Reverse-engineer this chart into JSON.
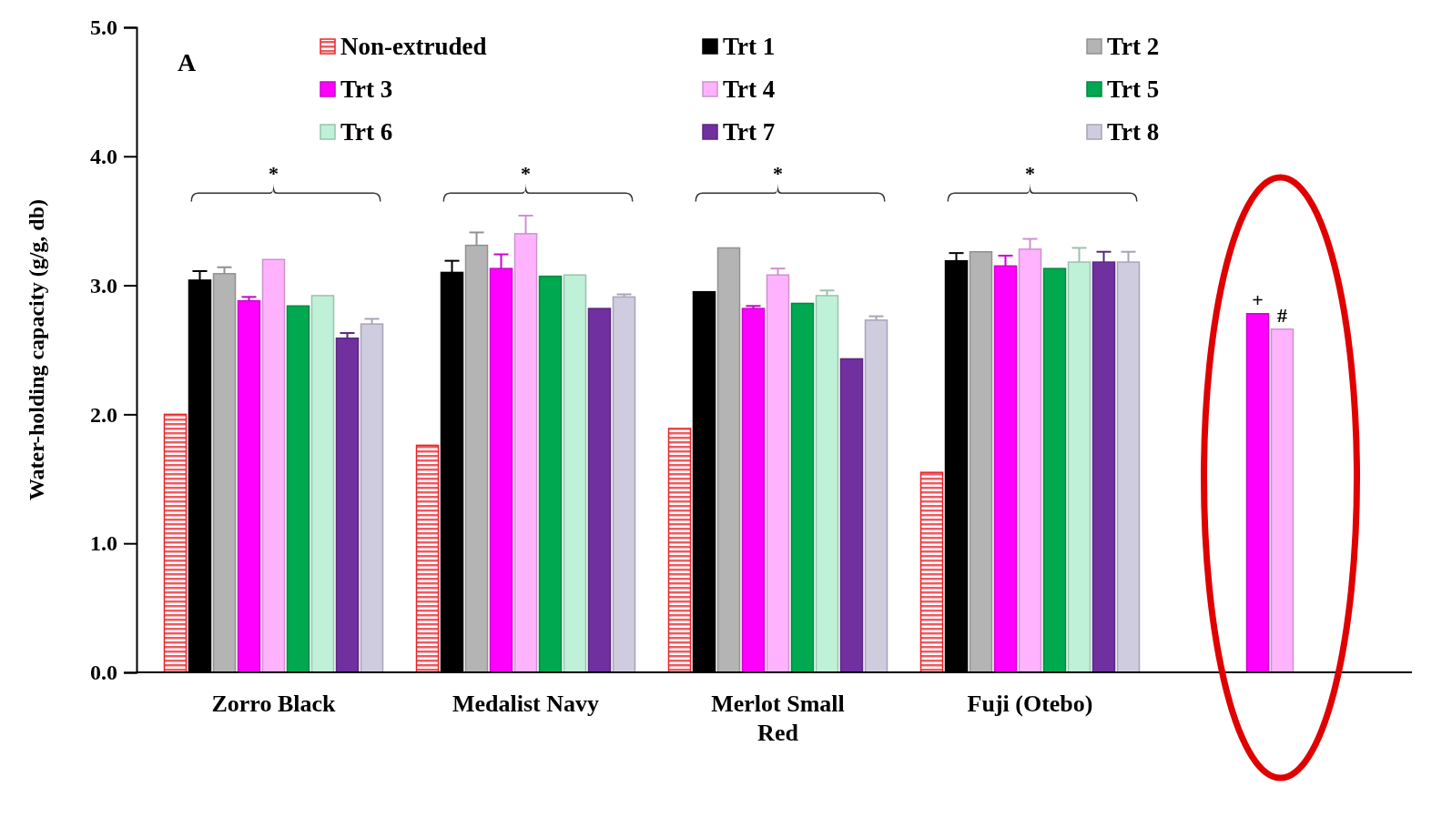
{
  "chart_data": {
    "type": "bar",
    "ylabel": "Water-holding capacity (g/g, db)",
    "categories": [
      "Zorro Black",
      "Medalist Navy",
      "Merlot Small Red",
      "Fuji (Otebo)",
      null
    ],
    "ylim": [
      0,
      5
    ],
    "yticks": [
      {
        "value": 0,
        "label": "0.0"
      },
      {
        "value": 1,
        "label": "1.0"
      },
      {
        "value": 2,
        "label": "2.0"
      },
      {
        "value": 3,
        "label": "3.0"
      },
      {
        "value": 4,
        "label": "4.0"
      },
      {
        "value": 5,
        "label": "5.0"
      }
    ],
    "legend": "top",
    "grid": false,
    "series": [
      {
        "name": "Non-extruded",
        "color": "#e8242a",
        "values": [
          2.0,
          1.76,
          1.89,
          1.55,
          null
        ]
      },
      {
        "name": "Trt 1",
        "color": "#000000",
        "values": [
          3.04,
          3.1,
          2.95,
          3.19,
          null
        ],
        "errors": [
          0.07,
          0.09,
          null,
          0.06,
          null
        ]
      },
      {
        "name": "Trt 2",
        "color": "#b4b4b4",
        "values": [
          3.09,
          3.31,
          3.29,
          3.26,
          null
        ],
        "errors": [
          0.05,
          0.1,
          null,
          null,
          null
        ]
      },
      {
        "name": "Trt 3",
        "color": "#ff00ff",
        "values": [
          2.88,
          3.13,
          2.82,
          3.15,
          2.78
        ],
        "errors": [
          0.03,
          0.11,
          0.02,
          0.08,
          null
        ]
      },
      {
        "name": "Trt 4",
        "color": "#ffb3ff",
        "values": [
          3.2,
          3.4,
          3.08,
          3.28,
          2.66
        ],
        "errors": [
          null,
          0.14,
          0.05,
          0.08,
          null
        ]
      },
      {
        "name": "Trt 5",
        "color": "#00a84f",
        "values": [
          2.84,
          3.07,
          2.86,
          3.13,
          null
        ]
      },
      {
        "name": "Trt 6",
        "color": "#bff0d8",
        "values": [
          2.92,
          3.08,
          2.92,
          3.18,
          null
        ],
        "errors": [
          null,
          null,
          0.04,
          0.11,
          null
        ]
      },
      {
        "name": "Trt 7",
        "color": "#7030a0",
        "values": [
          2.59,
          2.82,
          2.43,
          3.18,
          null
        ],
        "errors": [
          0.04,
          null,
          null,
          0.08,
          null
        ]
      },
      {
        "name": "Trt 8",
        "color": "#d0cce0",
        "values": [
          2.7,
          2.91,
          2.73,
          3.18,
          null
        ],
        "errors": [
          0.04,
          0.02,
          0.03,
          0.08,
          null
        ]
      }
    ],
    "annotations": [
      "A",
      "*",
      "*",
      "*",
      "*",
      "+",
      "#"
    ]
  }
}
